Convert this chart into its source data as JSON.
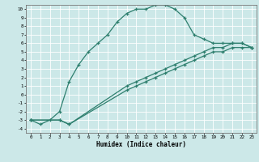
{
  "title": "",
  "xlabel": "Humidex (Indice chaleur)",
  "ylabel": "",
  "bg_color": "#cce8e8",
  "grid_color": "#ffffff",
  "line_color": "#2e7f6e",
  "xlim": [
    -0.5,
    23.5
  ],
  "ylim": [
    -4.5,
    10.5
  ],
  "xticks": [
    0,
    1,
    2,
    3,
    4,
    5,
    6,
    7,
    8,
    9,
    10,
    11,
    12,
    13,
    14,
    15,
    16,
    17,
    18,
    19,
    20,
    21,
    22,
    23
  ],
  "yticks": [
    -4,
    -3,
    -2,
    -1,
    0,
    1,
    2,
    3,
    4,
    5,
    6,
    7,
    8,
    9,
    10
  ],
  "line1_x": [
    0,
    1,
    2,
    3,
    4,
    5,
    6,
    7,
    8,
    9,
    10,
    11,
    12,
    13,
    14,
    15,
    16,
    17,
    18,
    19,
    20,
    21,
    22,
    23
  ],
  "line1_y": [
    -3.0,
    -3.5,
    -3.0,
    -2.0,
    1.5,
    3.5,
    5.0,
    6.0,
    7.0,
    8.5,
    9.5,
    10.0,
    10.0,
    10.5,
    10.5,
    10.0,
    9.0,
    7.0,
    6.5,
    6.0,
    6.0,
    6.0,
    6.0,
    5.5
  ],
  "line2_x": [
    0,
    3,
    4,
    10,
    11,
    12,
    13,
    14,
    15,
    16,
    17,
    18,
    19,
    20,
    21,
    22,
    23
  ],
  "line2_y": [
    -3.0,
    -3.0,
    -3.5,
    0.5,
    1.0,
    1.5,
    2.0,
    2.5,
    3.0,
    3.5,
    4.0,
    4.5,
    5.0,
    5.0,
    5.5,
    5.5,
    5.5
  ],
  "line3_x": [
    0,
    3,
    4,
    10,
    11,
    12,
    13,
    14,
    15,
    16,
    17,
    18,
    19,
    20,
    21,
    22,
    23
  ],
  "line3_y": [
    -3.0,
    -3.0,
    -3.5,
    1.0,
    1.5,
    2.0,
    2.5,
    3.0,
    3.5,
    4.0,
    4.5,
    5.0,
    5.5,
    5.5,
    6.0,
    6.0,
    5.5
  ]
}
